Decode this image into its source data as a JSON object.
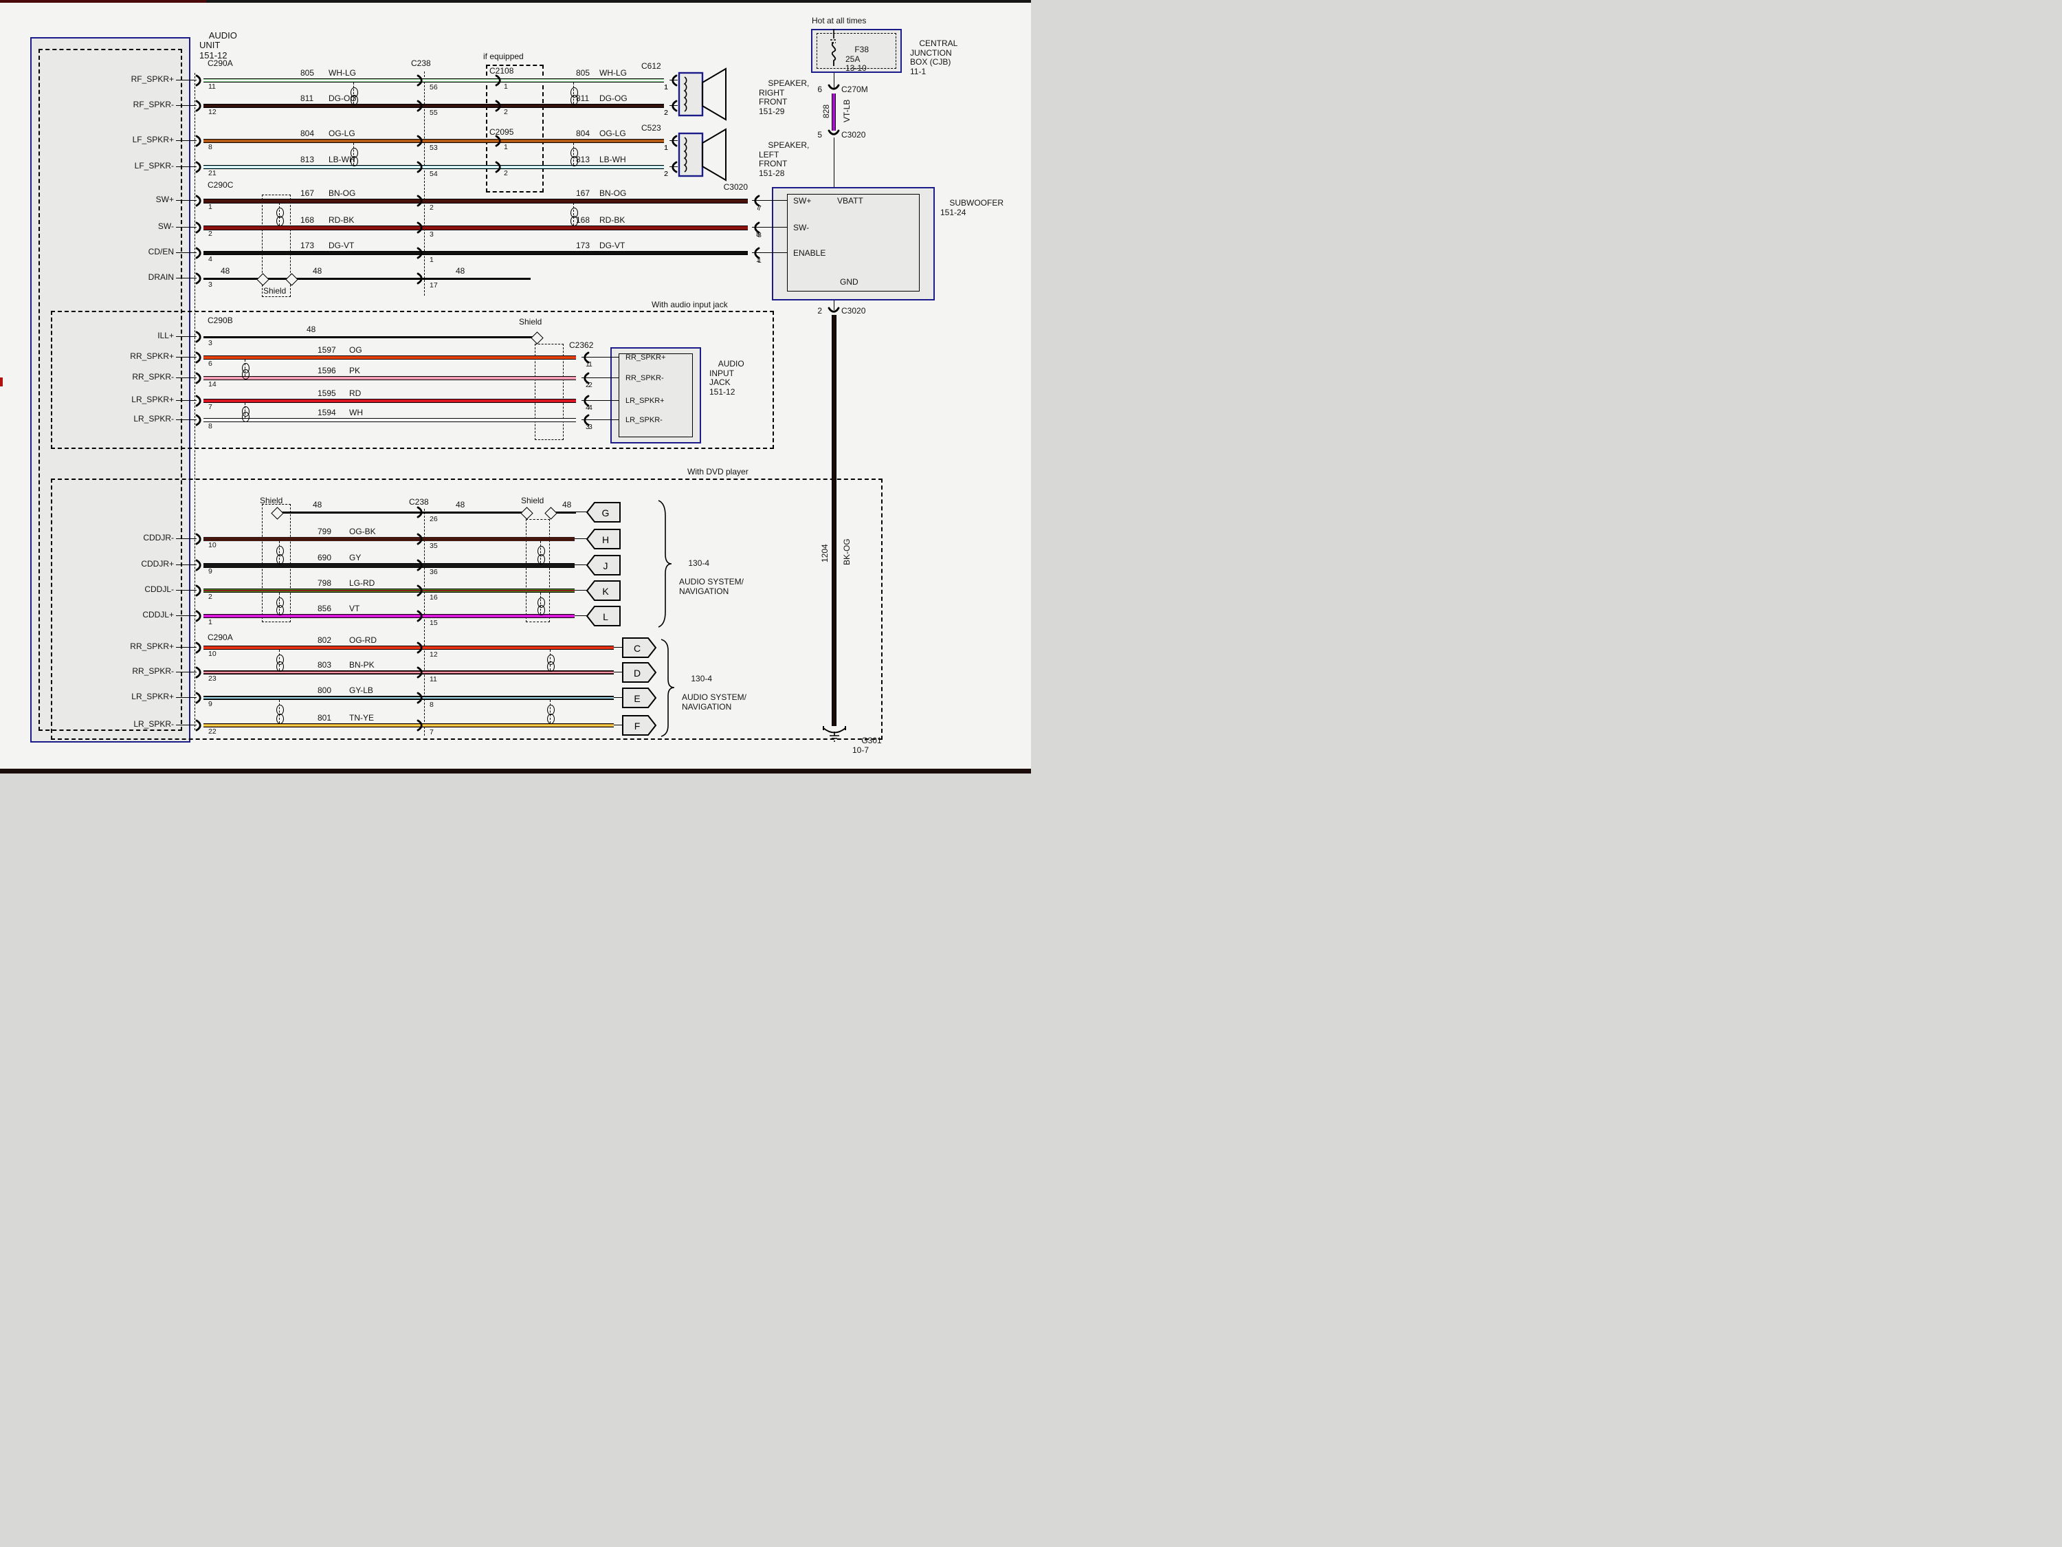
{
  "audio_unit": {
    "line1": "AUDIO",
    "line2": "UNIT",
    "ref": "151-12"
  },
  "labels": {
    "c238_top": "C238",
    "c238_dvd": "C238",
    "if_equipped": "if equipped",
    "c2108": "C2108",
    "c2095": "C2095",
    "with_audio_jack": "With audio input jack",
    "with_dvd": "With DVD player",
    "shield": "Shield",
    "hot": "Hot at all times"
  },
  "cjb": {
    "fuse": "F38",
    "amps": "25A",
    "pos": "13-10",
    "name1": "CENTRAL",
    "name2": "JUNCTION",
    "name3": "BOX (CJB)",
    "ref": "11-1",
    "pin6": "6",
    "conn_out": "C270M",
    "circuit": "828",
    "color": "VT-LB",
    "hex": "#ae0cd2",
    "pin5": "5",
    "conn_in": "C3020"
  },
  "subwoofer": {
    "name": "SUBWOOFER",
    "ref": "151-24",
    "sw_plus": "SW+",
    "sw_minus": "SW-",
    "enable": "ENABLE",
    "vbatt": "VBATT",
    "gnd": "GND",
    "conn": "C3020",
    "pins": [
      "7",
      "8",
      "1"
    ],
    "gnd_pin": "2",
    "gnd_conn": "C3020",
    "circuit": "1204",
    "color": "BK-OG",
    "hex": "#190b06",
    "ground": "G301",
    "ground_pos": "10-7"
  },
  "speakers": {
    "right": {
      "conn": "C612",
      "name1": "SPEAKER,",
      "name2": "RIGHT",
      "name3": "FRONT",
      "ref": "151-29",
      "pins": [
        "1",
        "2"
      ]
    },
    "left": {
      "conn": "C523",
      "name1": "SPEAKER,",
      "name2": "LEFT",
      "name3": "FRONT",
      "ref": "151-28",
      "pins": [
        "1",
        "2"
      ]
    }
  },
  "jack_box": {
    "conn": "C2362",
    "name1": "AUDIO",
    "name2": "INPUT",
    "name3": "JACK",
    "ref": "151-12",
    "pins": [
      "RR_SPKR+",
      "RR_SPKR-",
      "LR_SPKR+",
      "LR_SPKR-"
    ],
    "pin_nums": [
      "1",
      "2",
      "4",
      "3"
    ]
  },
  "nav": {
    "ref": "130-4",
    "name1": "AUDIO SYSTEM/",
    "name2": "NAVIGATION"
  },
  "rows": {
    "front": {
      "conn": "C290A",
      "items": [
        {
          "signal": "RF_SPKR+",
          "pin": "11",
          "circuit": "805",
          "color": "WH-LG",
          "hex": "#8fd694",
          "stripe": "#ffffff",
          "c238": "56",
          "ifpin": "1",
          "end": "1"
        },
        {
          "signal": "RF_SPKR-",
          "pin": "12",
          "circuit": "811",
          "color": "DG-OG",
          "hex": "#33120e",
          "c238": "55",
          "ifpin": "2",
          "end": "2"
        },
        {
          "signal": "LF_SPKR+",
          "pin": "8",
          "circuit": "804",
          "color": "OG-LG",
          "hex": "#b55a14",
          "c238": "53",
          "ifpin": "1",
          "end": "1"
        },
        {
          "signal": "LF_SPKR-",
          "pin": "21",
          "circuit": "813",
          "color": "LB-WH",
          "hex": "#7cc9d6",
          "stripe": "#ffffff",
          "c238": "54",
          "ifpin": "2",
          "end": "2"
        }
      ]
    },
    "sub": {
      "conn": "C290C",
      "items": [
        {
          "signal": "SW+",
          "pin": "1",
          "circuit": "167",
          "color": "BN-OG",
          "hex": "#4a120c",
          "c238": "2",
          "end": "7"
        },
        {
          "signal": "SW-",
          "pin": "2",
          "circuit": "168",
          "color": "RD-BK",
          "hex": "#8c1210",
          "c238": "3",
          "end": "8"
        },
        {
          "signal": "CD/EN",
          "pin": "4",
          "circuit": "173",
          "color": "DG-VT",
          "hex": "#101010",
          "c238": "1",
          "end": "1"
        },
        {
          "signal": "DRAIN",
          "pin": "3",
          "circuit": "48",
          "color": "",
          "hex": "#000000",
          "c238": "17",
          "l48": [
            "48",
            "48",
            "48"
          ]
        }
      ]
    },
    "jack": {
      "conn": "C290B",
      "items": [
        {
          "signal": "ILL+",
          "pin": "3",
          "circuit": "48",
          "color": "",
          "hex": "#000000"
        },
        {
          "signal": "RR_SPKR+",
          "pin": "6",
          "circuit": "1597",
          "color": "OG",
          "hex": "#e8400e",
          "end": "1"
        },
        {
          "signal": "RR_SPKR-",
          "pin": "14",
          "circuit": "1596",
          "color": "PK",
          "hex": "#f29cb4",
          "end": "2"
        },
        {
          "signal": "LR_SPKR+",
          "pin": "7",
          "circuit": "1595",
          "color": "RD",
          "hex": "#da1420",
          "end": "4"
        },
        {
          "signal": "LR_SPKR-",
          "pin": "8",
          "circuit": "1594",
          "color": "WH",
          "hex": "#ffffff",
          "end": "3"
        }
      ]
    },
    "dvd": {
      "items": [
        {
          "signal": "",
          "pin": "",
          "circuit": "48",
          "color": "",
          "hex": "#000000",
          "c238": "26",
          "letter": "G",
          "l48": [
            "48",
            "48",
            "48"
          ]
        },
        {
          "signal": "CDDJR-",
          "pin": "10",
          "circuit": "799",
          "color": "OG-BK",
          "hex": "#99301c",
          "stripe": "#1a0a06",
          "c238": "35",
          "letter": "H"
        },
        {
          "signal": "CDDJR+",
          "pin": "9",
          "circuit": "690",
          "color": "GY",
          "hex": "#161616",
          "c238": "36",
          "letter": "J"
        },
        {
          "signal": "CDDJL-",
          "pin": "2",
          "circuit": "798",
          "color": "LG-RD",
          "hex": "#49951f",
          "stripe": "#8a1a1a",
          "c238": "16",
          "letter": "K"
        },
        {
          "signal": "CDDJL+",
          "pin": "1",
          "circuit": "856",
          "color": "VT",
          "hex": "#d619d6",
          "c238": "15",
          "letter": "L"
        }
      ]
    },
    "rear": {
      "conn": "C290A",
      "items": [
        {
          "signal": "RR_SPKR+",
          "pin": "10",
          "circuit": "802",
          "color": "OG-RD",
          "hex": "#e63214",
          "c238": "12",
          "letter": "C"
        },
        {
          "signal": "RR_SPKR-",
          "pin": "23",
          "circuit": "803",
          "color": "BN-PK",
          "hex": "#4a1218",
          "stripe": "#f098a8",
          "c238": "11",
          "letter": "D"
        },
        {
          "signal": "LR_SPKR+",
          "pin": "9",
          "circuit": "800",
          "color": "GY-LB",
          "hex": "#141414",
          "stripe": "#a0d8ec",
          "c238": "8",
          "letter": "E"
        },
        {
          "signal": "LR_SPKR-",
          "pin": "22",
          "circuit": "801",
          "color": "TN-YE",
          "hex": "#cf8f2a",
          "stripe": "#f2d24a",
          "c238": "7",
          "letter": "F"
        }
      ]
    }
  }
}
